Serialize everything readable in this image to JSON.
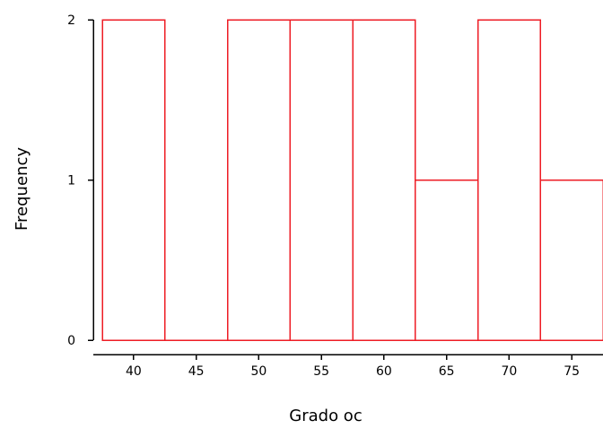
{
  "chart_data": {
    "type": "bar",
    "xlabel": "Grado oc",
    "ylabel": "Frequency",
    "bin_width": 5,
    "bins": [
      {
        "x_start": 37.5,
        "x_end": 42.5,
        "count": 2
      },
      {
        "x_start": 42.5,
        "x_end": 47.5,
        "count": 0
      },
      {
        "x_start": 47.5,
        "x_end": 52.5,
        "count": 2
      },
      {
        "x_start": 52.5,
        "x_end": 57.5,
        "count": 2
      },
      {
        "x_start": 57.5,
        "x_end": 62.5,
        "count": 2
      },
      {
        "x_start": 62.5,
        "x_end": 67.5,
        "count": 1
      },
      {
        "x_start": 67.5,
        "x_end": 72.5,
        "count": 2
      },
      {
        "x_start": 72.5,
        "x_end": 77.5,
        "count": 1
      }
    ],
    "x_ticks": [
      40,
      45,
      50,
      55,
      60,
      65,
      70,
      75
    ],
    "y_ticks": [
      0,
      1,
      2
    ],
    "xlim": [
      37.5,
      77.5
    ],
    "ylim": [
      0,
      2
    ],
    "bar_color": "#ee1c24",
    "grid": false,
    "legend": "none"
  }
}
